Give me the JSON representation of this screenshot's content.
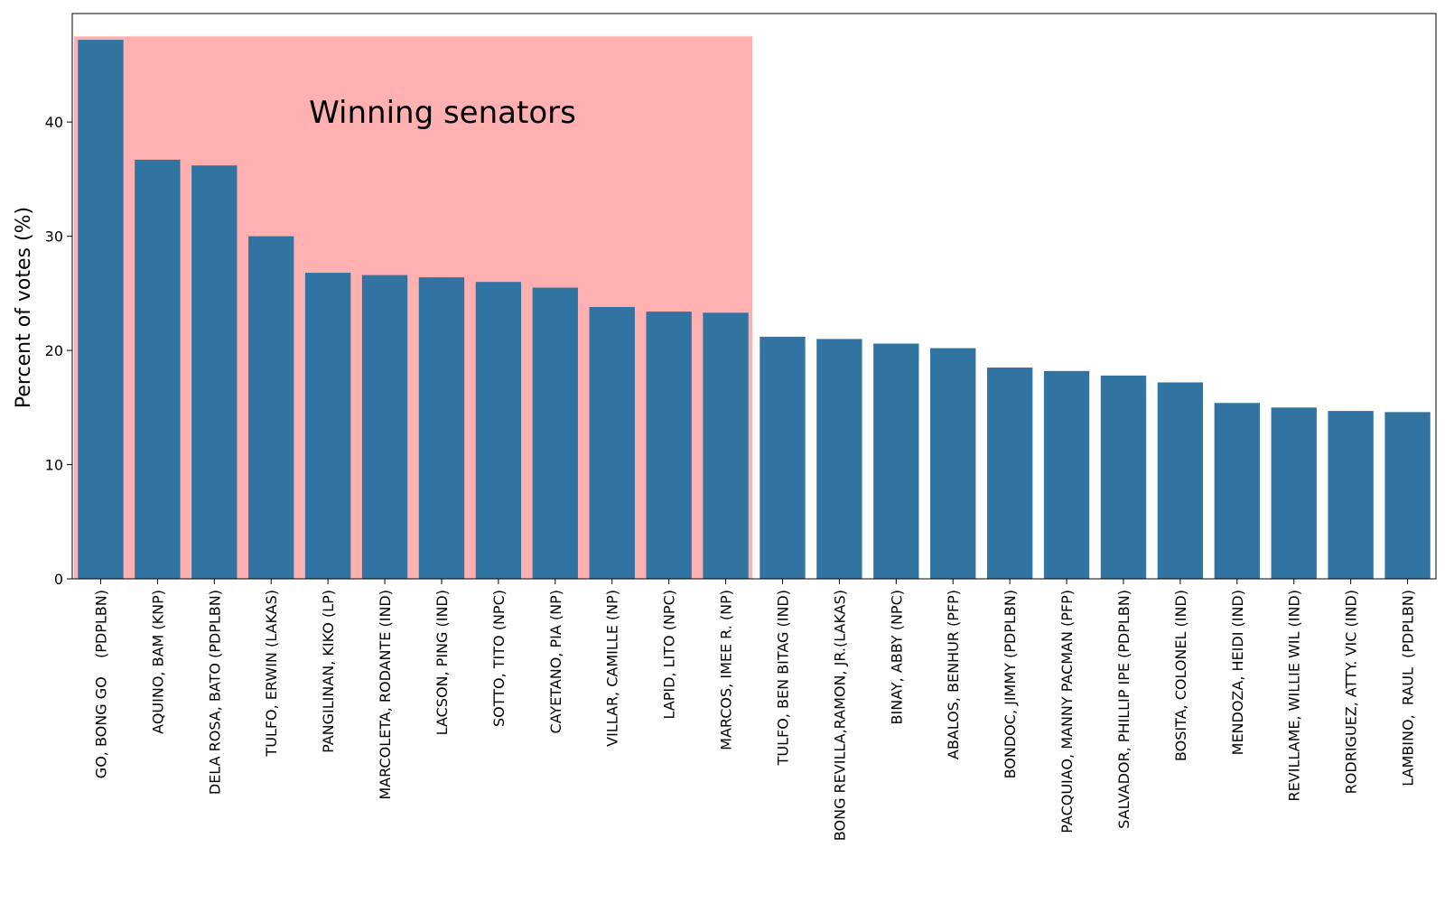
{
  "chart_data": {
    "type": "bar",
    "title": "",
    "xlabel": "",
    "ylabel": "Percent of votes (%)",
    "ylim": [
      0,
      49.5
    ],
    "yticks": [
      0,
      10,
      20,
      30,
      40
    ],
    "grid": false,
    "categories": [
      "GO, BONG GO    (PDPLBN)",
      "AQUINO, BAM (KNP)",
      "DELA ROSA, BATO (PDPLBN)",
      "TULFO, ERWIN (LAKAS)",
      "PANGILINAN, KIKO (LP)",
      "MARCOLETA, RODANTE (IND)",
      "LACSON, PING (IND)",
      "SOTTO, TITO (NPC)",
      "CAYETANO, PIA (NP)",
      "VILLAR, CAMILLE (NP)",
      "LAPID, LITO (NPC)",
      "MARCOS, IMEE R. (NP)",
      "TULFO, BEN BITAG (IND)",
      "BONG REVILLA,RAMON, JR.(LAKAS)",
      "BINAY, ABBY (NPC)",
      "ABALOS, BENHUR (PFP)",
      "BONDOC, JIMMY (PDPLBN)",
      "PACQUIAO, MANNY PACMAN (PFP)",
      "SALVADOR, PHILLIP IPE (PDPLBN)",
      "BOSITA, COLONEL (IND)",
      "MENDOZA, HEIDI (IND)",
      "REVILLAME, WILLIE WIL (IND)",
      "RODRIGUEZ, ATTY. VIC (IND)",
      "LAMBINO,  RAUL  (PDPLBN)"
    ],
    "values": [
      47.2,
      36.7,
      36.2,
      30.0,
      26.8,
      26.6,
      26.4,
      26.0,
      25.5,
      23.8,
      23.4,
      23.3,
      21.2,
      21.0,
      20.6,
      20.2,
      18.5,
      18.2,
      17.8,
      17.2,
      15.4,
      15.0,
      14.7,
      14.6
    ],
    "bar_color": "#3274a1",
    "highlight": {
      "label": "Winning senators",
      "first_index": 0,
      "last_index": 11,
      "top_value": 47.5,
      "color": "#ffb0b0"
    }
  }
}
